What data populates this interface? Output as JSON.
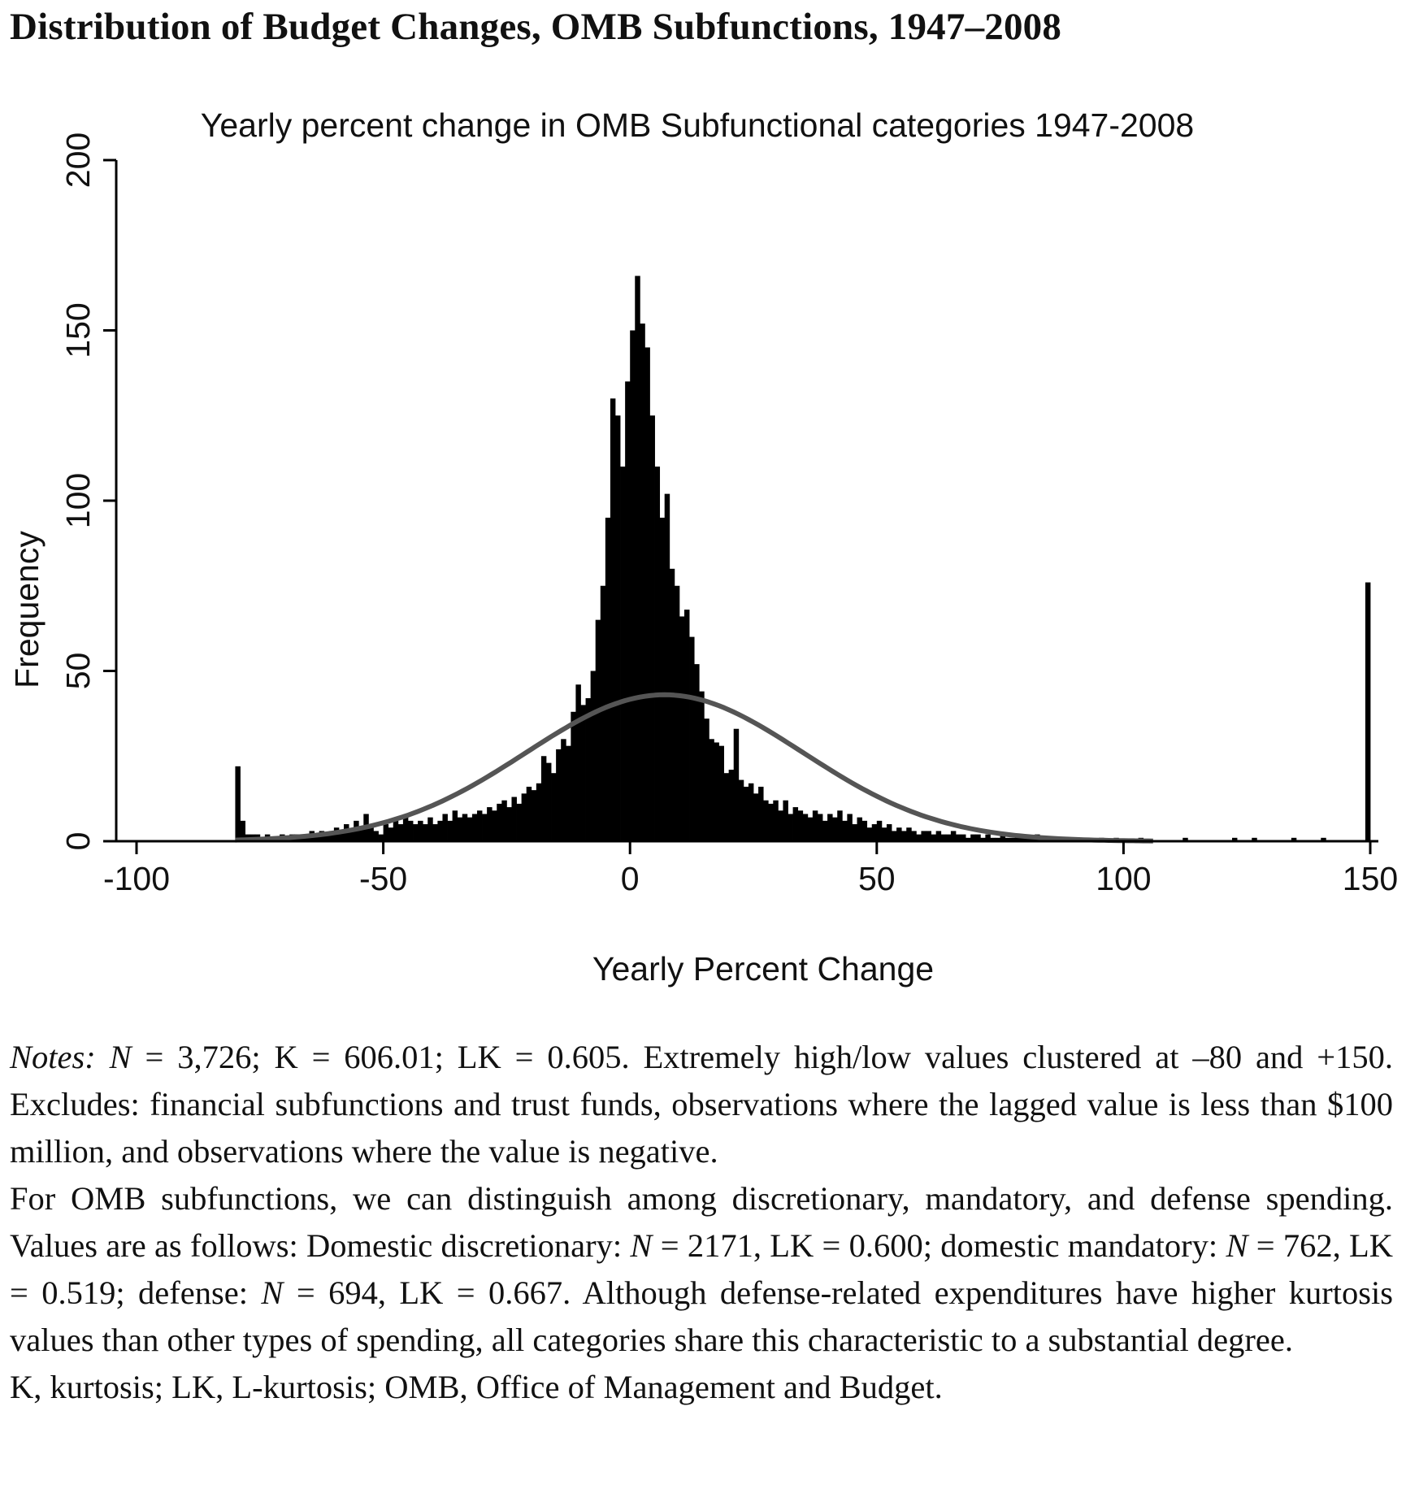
{
  "page": {
    "title": "Distribution of Budget Changes, OMB Subfunctions, 1947–2008"
  },
  "chart_data": {
    "type": "bar",
    "title": "Yearly percent change in OMB Subfunctional categories 1947-2008",
    "xlabel": "Yearly Percent Change",
    "ylabel": "Frequency",
    "xlim": [
      -100,
      150
    ],
    "ylim": [
      0,
      200
    ],
    "x_ticks": [
      -100,
      -50,
      0,
      50,
      100,
      150
    ],
    "x_tick_labels": [
      "-100",
      "-50",
      "0",
      "50",
      "100",
      "150"
    ],
    "y_ticks": [
      0,
      50,
      100,
      150,
      200
    ],
    "y_tick_labels": [
      "0",
      "50",
      "100",
      "150",
      "200"
    ],
    "grid": false,
    "bar_color": "#000000",
    "curve_color": "#555555",
    "histogram": {
      "bin_width": 1,
      "bins": [
        {
          "x": -80,
          "count": 22
        },
        {
          "x": -79,
          "count": 6
        },
        {
          "x": -78,
          "count": 2
        },
        {
          "x": -77,
          "count": 2
        },
        {
          "x": -76,
          "count": 2
        },
        {
          "x": -75,
          "count": 1
        },
        {
          "x": -74,
          "count": 2
        },
        {
          "x": -73,
          "count": 1
        },
        {
          "x": -72,
          "count": 1
        },
        {
          "x": -71,
          "count": 2
        },
        {
          "x": -70,
          "count": 1
        },
        {
          "x": -69,
          "count": 2
        },
        {
          "x": -68,
          "count": 2
        },
        {
          "x": -67,
          "count": 1
        },
        {
          "x": -66,
          "count": 2
        },
        {
          "x": -65,
          "count": 3
        },
        {
          "x": -64,
          "count": 2
        },
        {
          "x": -63,
          "count": 3
        },
        {
          "x": -62,
          "count": 2
        },
        {
          "x": -61,
          "count": 3
        },
        {
          "x": -60,
          "count": 4
        },
        {
          "x": -59,
          "count": 3
        },
        {
          "x": -58,
          "count": 5
        },
        {
          "x": -57,
          "count": 3
        },
        {
          "x": -56,
          "count": 6
        },
        {
          "x": -55,
          "count": 4
        },
        {
          "x": -54,
          "count": 8
        },
        {
          "x": -53,
          "count": 4
        },
        {
          "x": -52,
          "count": 3
        },
        {
          "x": -51,
          "count": 2
        },
        {
          "x": -50,
          "count": 5
        },
        {
          "x": -49,
          "count": 4
        },
        {
          "x": -48,
          "count": 6
        },
        {
          "x": -47,
          "count": 5
        },
        {
          "x": -46,
          "count": 7
        },
        {
          "x": -45,
          "count": 6
        },
        {
          "x": -44,
          "count": 5
        },
        {
          "x": -43,
          "count": 6
        },
        {
          "x": -42,
          "count": 5
        },
        {
          "x": -41,
          "count": 7
        },
        {
          "x": -40,
          "count": 5
        },
        {
          "x": -39,
          "count": 6
        },
        {
          "x": -38,
          "count": 8
        },
        {
          "x": -37,
          "count": 6
        },
        {
          "x": -36,
          "count": 9
        },
        {
          "x": -35,
          "count": 7
        },
        {
          "x": -34,
          "count": 8
        },
        {
          "x": -33,
          "count": 7
        },
        {
          "x": -32,
          "count": 8
        },
        {
          "x": -31,
          "count": 9
        },
        {
          "x": -30,
          "count": 8
        },
        {
          "x": -29,
          "count": 10
        },
        {
          "x": -28,
          "count": 9
        },
        {
          "x": -27,
          "count": 11
        },
        {
          "x": -26,
          "count": 12
        },
        {
          "x": -25,
          "count": 10
        },
        {
          "x": -24,
          "count": 13
        },
        {
          "x": -23,
          "count": 11
        },
        {
          "x": -22,
          "count": 14
        },
        {
          "x": -21,
          "count": 16
        },
        {
          "x": -20,
          "count": 15
        },
        {
          "x": -19,
          "count": 17
        },
        {
          "x": -18,
          "count": 25
        },
        {
          "x": -17,
          "count": 23
        },
        {
          "x": -16,
          "count": 20
        },
        {
          "x": -15,
          "count": 27
        },
        {
          "x": -14,
          "count": 30
        },
        {
          "x": -13,
          "count": 28
        },
        {
          "x": -12,
          "count": 38
        },
        {
          "x": -11,
          "count": 46
        },
        {
          "x": -10,
          "count": 40
        },
        {
          "x": -9,
          "count": 42
        },
        {
          "x": -8,
          "count": 50
        },
        {
          "x": -7,
          "count": 65
        },
        {
          "x": -6,
          "count": 75
        },
        {
          "x": -5,
          "count": 95
        },
        {
          "x": -4,
          "count": 130
        },
        {
          "x": -3,
          "count": 125
        },
        {
          "x": -2,
          "count": 110
        },
        {
          "x": -1,
          "count": 135
        },
        {
          "x": 0,
          "count": 150
        },
        {
          "x": 1,
          "count": 166
        },
        {
          "x": 2,
          "count": 152
        },
        {
          "x": 3,
          "count": 145
        },
        {
          "x": 4,
          "count": 125
        },
        {
          "x": 5,
          "count": 110
        },
        {
          "x": 6,
          "count": 95
        },
        {
          "x": 7,
          "count": 102
        },
        {
          "x": 8,
          "count": 80
        },
        {
          "x": 9,
          "count": 75
        },
        {
          "x": 10,
          "count": 66
        },
        {
          "x": 11,
          "count": 68
        },
        {
          "x": 12,
          "count": 60
        },
        {
          "x": 13,
          "count": 52
        },
        {
          "x": 14,
          "count": 44
        },
        {
          "x": 15,
          "count": 36
        },
        {
          "x": 16,
          "count": 30
        },
        {
          "x": 17,
          "count": 29
        },
        {
          "x": 18,
          "count": 28
        },
        {
          "x": 19,
          "count": 20
        },
        {
          "x": 20,
          "count": 21
        },
        {
          "x": 21,
          "count": 33
        },
        {
          "x": 22,
          "count": 18
        },
        {
          "x": 23,
          "count": 16
        },
        {
          "x": 24,
          "count": 17
        },
        {
          "x": 25,
          "count": 14
        },
        {
          "x": 26,
          "count": 16
        },
        {
          "x": 27,
          "count": 12
        },
        {
          "x": 28,
          "count": 11
        },
        {
          "x": 29,
          "count": 12
        },
        {
          "x": 30,
          "count": 9
        },
        {
          "x": 31,
          "count": 12
        },
        {
          "x": 32,
          "count": 8
        },
        {
          "x": 33,
          "count": 10
        },
        {
          "x": 34,
          "count": 9
        },
        {
          "x": 35,
          "count": 8
        },
        {
          "x": 36,
          "count": 7
        },
        {
          "x": 37,
          "count": 9
        },
        {
          "x": 38,
          "count": 8
        },
        {
          "x": 39,
          "count": 6
        },
        {
          "x": 40,
          "count": 8
        },
        {
          "x": 41,
          "count": 7
        },
        {
          "x": 42,
          "count": 9
        },
        {
          "x": 43,
          "count": 6
        },
        {
          "x": 44,
          "count": 8
        },
        {
          "x": 45,
          "count": 5
        },
        {
          "x": 46,
          "count": 7
        },
        {
          "x": 47,
          "count": 6
        },
        {
          "x": 48,
          "count": 4
        },
        {
          "x": 49,
          "count": 5
        },
        {
          "x": 50,
          "count": 6
        },
        {
          "x": 51,
          "count": 4
        },
        {
          "x": 52,
          "count": 5
        },
        {
          "x": 53,
          "count": 3
        },
        {
          "x": 54,
          "count": 4
        },
        {
          "x": 55,
          "count": 3
        },
        {
          "x": 56,
          "count": 4
        },
        {
          "x": 57,
          "count": 3
        },
        {
          "x": 58,
          "count": 2
        },
        {
          "x": 59,
          "count": 3
        },
        {
          "x": 60,
          "count": 3
        },
        {
          "x": 61,
          "count": 2
        },
        {
          "x": 62,
          "count": 3
        },
        {
          "x": 63,
          "count": 2
        },
        {
          "x": 64,
          "count": 2
        },
        {
          "x": 65,
          "count": 3
        },
        {
          "x": 66,
          "count": 2
        },
        {
          "x": 67,
          "count": 2
        },
        {
          "x": 68,
          "count": 1
        },
        {
          "x": 69,
          "count": 2
        },
        {
          "x": 70,
          "count": 2
        },
        {
          "x": 71,
          "count": 1
        },
        {
          "x": 72,
          "count": 2
        },
        {
          "x": 73,
          "count": 1
        },
        {
          "x": 74,
          "count": 1
        },
        {
          "x": 75,
          "count": 2
        },
        {
          "x": 76,
          "count": 1
        },
        {
          "x": 77,
          "count": 1
        },
        {
          "x": 78,
          "count": 2
        },
        {
          "x": 79,
          "count": 1
        },
        {
          "x": 80,
          "count": 1
        },
        {
          "x": 81,
          "count": 1
        },
        {
          "x": 82,
          "count": 2
        },
        {
          "x": 83,
          "count": 1
        },
        {
          "x": 84,
          "count": 1
        },
        {
          "x": 85,
          "count": 1
        },
        {
          "x": 86,
          "count": 1
        },
        {
          "x": 88,
          "count": 1
        },
        {
          "x": 90,
          "count": 1
        },
        {
          "x": 92,
          "count": 1
        },
        {
          "x": 95,
          "count": 1
        },
        {
          "x": 98,
          "count": 1
        },
        {
          "x": 103,
          "count": 1
        },
        {
          "x": 112,
          "count": 1
        },
        {
          "x": 122,
          "count": 1
        },
        {
          "x": 126,
          "count": 1
        },
        {
          "x": 134,
          "count": 1
        },
        {
          "x": 140,
          "count": 1
        },
        {
          "x": 149,
          "count": 76
        }
      ]
    },
    "normal_curve": {
      "mean": 7,
      "peak": 43,
      "sd": 28,
      "x_range": [
        -80,
        106
      ]
    }
  },
  "notes": {
    "notes_label": "Notes:",
    "n_symbol": "N",
    "first_stats": " = 3,726; K = 606.01; LK = 0.605. Extremely high/low values clustered at –80 and +150. Excludes: financial subfunctions and trust funds, observations where the lagged value is less than $100 million, and observations where the value is negative.",
    "second_intro": "For OMB subfunctions, we can distinguish among discretionary, mandatory, and defense spending. Values are as follows: Domestic discretionary: ",
    "second_n1": " = 2171, LK = 0.600; domestic mandatory: ",
    "second_n2": " = 762, LK = 0.519; defense: ",
    "second_n3": " = 694, LK = 0.667. Although defense-related expenditures have higher kurtosis values than other types of spending, all categories share this characteristic to a substantial degree.",
    "abbreviations": "K, kurtosis; LK, L-kurtosis; OMB, Office of Management and Budget."
  }
}
